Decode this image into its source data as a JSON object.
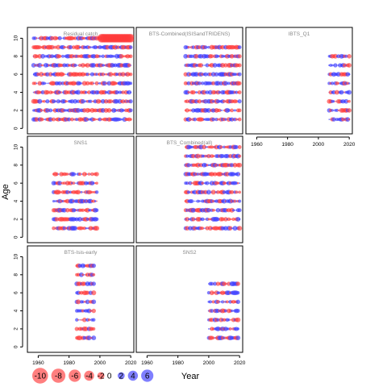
{
  "chart_data": {
    "type": "scatter",
    "subtype": "bubble-residuals-lattice",
    "xlabel": "Year",
    "ylabel": "Age",
    "xlim": [
      1953,
      2022
    ],
    "ylim": [
      -0.6,
      11.2
    ],
    "xticks": [
      1960,
      1980,
      2000,
      2020
    ],
    "yticks": [
      0,
      2,
      4,
      6,
      8,
      10
    ],
    "colors": {
      "negative": "#ff3b3b",
      "positive": "#3b3bff"
    },
    "panels": [
      {
        "title": "Residual catch",
        "years": [
          1957,
          2020
        ],
        "ages": [
          1,
          2,
          3,
          4,
          5,
          6,
          7,
          8,
          9,
          10
        ],
        "hot": [
          [
            2001,
            2020,
            10,
            10,
            9.5
          ]
        ]
      },
      {
        "title": "BTS-Combined(ISISandTRIDENS)",
        "years": [
          1985,
          2020
        ],
        "ages": [
          1,
          2,
          3,
          4,
          5,
          6,
          7,
          8,
          9
        ]
      },
      {
        "title": "IBTS_Q1",
        "years": [
          2007,
          2020
        ],
        "ages": [
          1,
          2,
          3,
          4,
          5,
          6,
          7,
          8
        ]
      },
      {
        "title": "SNS1",
        "years": [
          1970,
          1998
        ],
        "ages": [
          1,
          2,
          3,
          4,
          5,
          6,
          7
        ]
      },
      {
        "title": "BTS_Combined(all)",
        "years": [
          1985,
          2020
        ],
        "ages": [
          1,
          2,
          3,
          4,
          5,
          6,
          7,
          8,
          9,
          10
        ]
      },
      {
        "title": "BTS-Isis-early",
        "years": [
          1985,
          1996
        ],
        "ages": [
          1,
          2,
          3,
          4,
          5,
          6,
          7,
          8,
          9
        ]
      },
      {
        "title": "SNS2",
        "years": [
          2000,
          2019
        ],
        "ages": [
          1,
          2,
          3,
          4,
          5,
          6,
          7
        ]
      }
    ],
    "legend": {
      "values": [
        -10,
        -8,
        -6,
        -4,
        -2,
        0,
        2,
        4,
        6
      ]
    }
  }
}
